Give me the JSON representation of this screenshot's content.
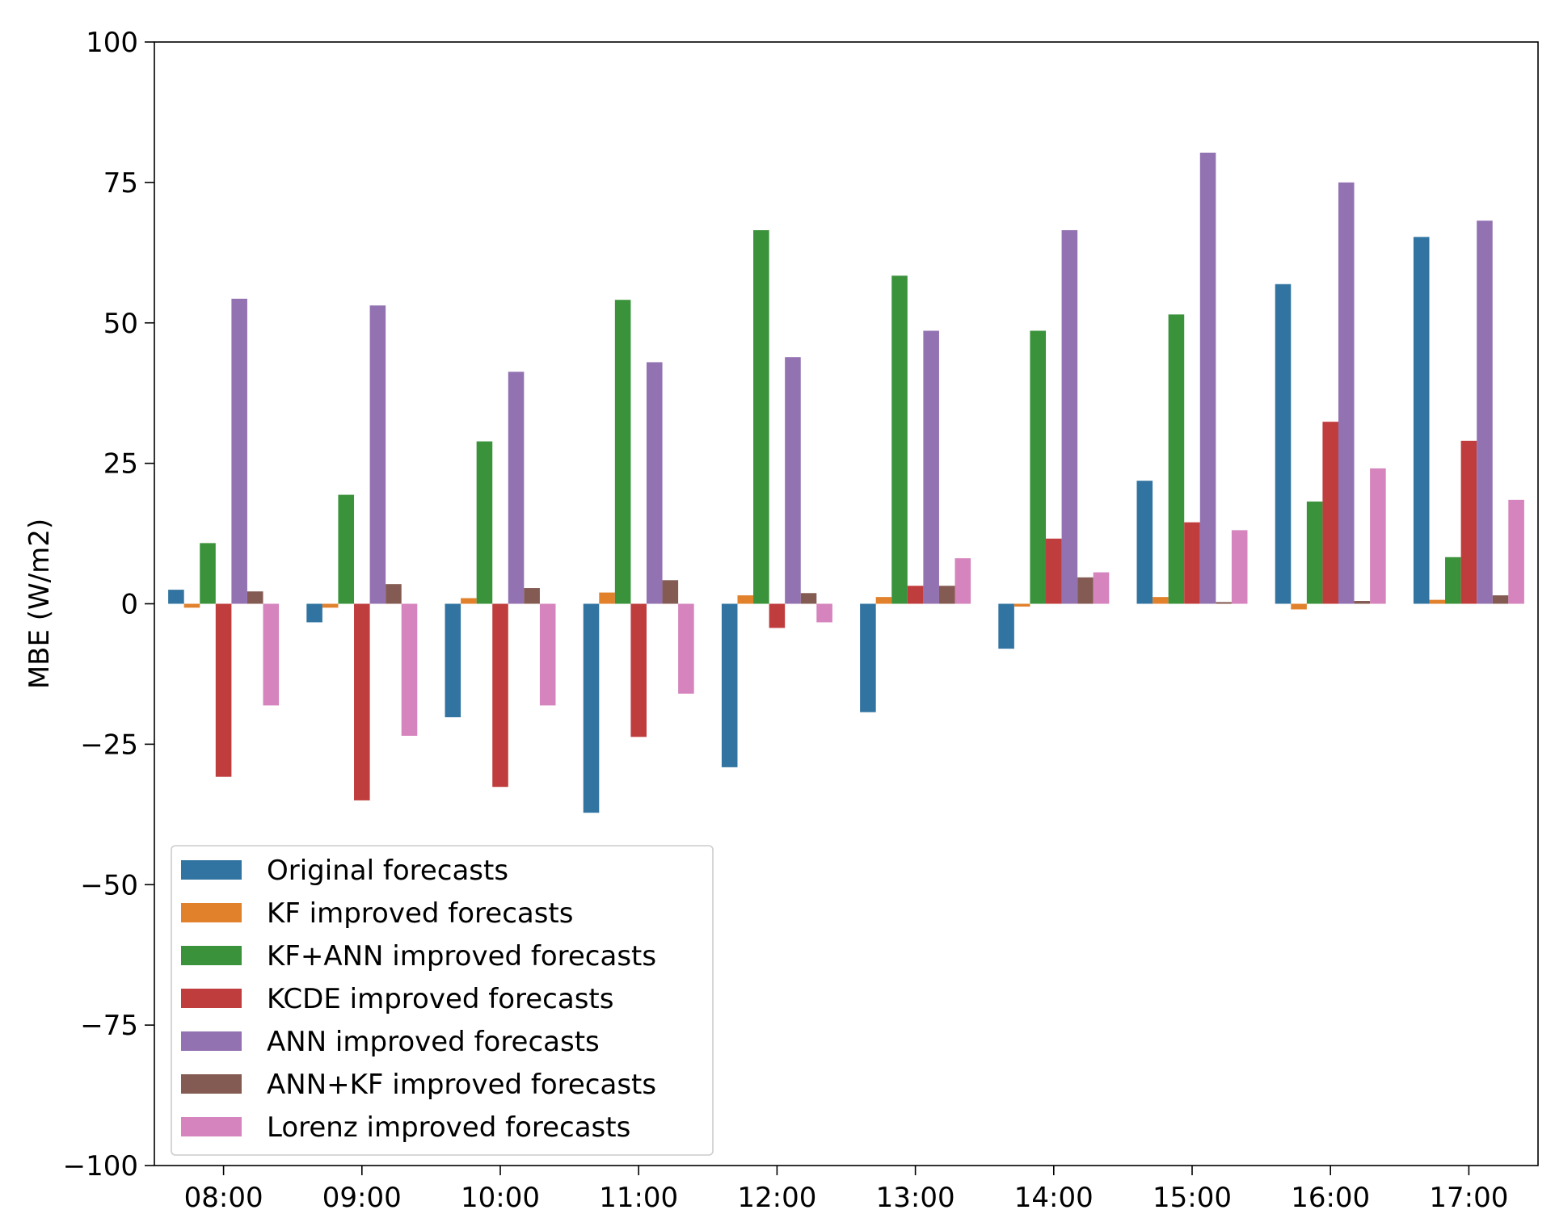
{
  "chart_data": {
    "type": "bar",
    "title": "",
    "xlabel": "",
    "ylabel": "MBE (W/m2)",
    "ylim": [
      -100,
      100
    ],
    "yticks": [
      -100,
      -75,
      -50,
      -25,
      0,
      25,
      50,
      75,
      100
    ],
    "ytick_labels": [
      "−100",
      "−75",
      "−50",
      "−25",
      "0",
      "25",
      "50",
      "75",
      "100"
    ],
    "categories": [
      "08:00",
      "09:00",
      "10:00",
      "11:00",
      "12:00",
      "13:00",
      "14:00",
      "15:00",
      "16:00",
      "17:00"
    ],
    "legend_position": "lower-left",
    "grid": false,
    "series": [
      {
        "name": "Original forecasts",
        "color": "#3274a1",
        "values": [
          2.5,
          -3.3,
          -20.2,
          -37.2,
          -29.1,
          -19.3,
          -8.0,
          21.9,
          56.9,
          65.3
        ]
      },
      {
        "name": "KF improved forecasts",
        "color": "#e1812c",
        "values": [
          -0.7,
          -0.7,
          1.0,
          2.0,
          1.5,
          1.2,
          -0.5,
          1.2,
          -1.0,
          0.7
        ]
      },
      {
        "name": "KF+ANN improved forecasts",
        "color": "#3a923a",
        "values": [
          10.8,
          19.4,
          28.9,
          54.1,
          66.5,
          58.4,
          48.6,
          51.5,
          18.2,
          8.3
        ]
      },
      {
        "name": "KCDE improved forecasts",
        "color": "#c03d3e",
        "values": [
          -30.8,
          -35.0,
          -32.6,
          -23.7,
          -4.3,
          3.2,
          11.6,
          14.5,
          32.4,
          29.0
        ]
      },
      {
        "name": "ANN improved forecasts",
        "color": "#9372b2",
        "values": [
          54.3,
          53.1,
          41.3,
          43.0,
          43.9,
          48.6,
          66.5,
          80.3,
          75.0,
          68.2
        ]
      },
      {
        "name": "ANN+KF improved forecasts",
        "color": "#845b53",
        "values": [
          2.2,
          3.5,
          2.8,
          4.2,
          1.9,
          3.2,
          4.7,
          0.3,
          0.5,
          1.5
        ]
      },
      {
        "name": "Lorenz improved forecasts",
        "color": "#d684bd",
        "values": [
          -18.1,
          -23.5,
          -18.1,
          -16.0,
          -3.3,
          8.1,
          5.6,
          13.1,
          24.1,
          18.5
        ]
      }
    ]
  }
}
